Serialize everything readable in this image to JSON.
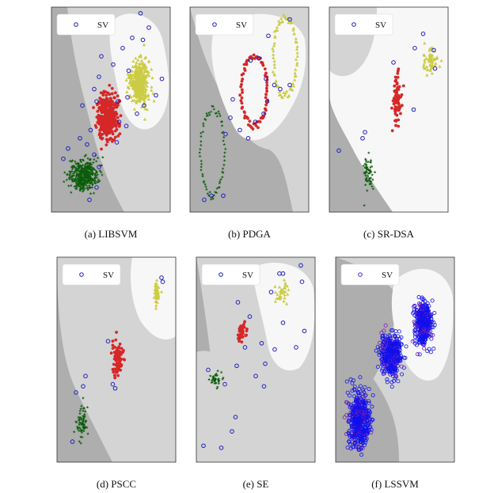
{
  "chart_data": [
    {
      "type": "scatter",
      "caption": "(a) LIBSVM",
      "legend": {
        "label": "SV",
        "placement": "top-left"
      },
      "grid": false,
      "colors": {
        "region_dark": "#aeaeae",
        "region_mid": "#d4d4d4",
        "region_light": "#f7f7f7",
        "class1": "#0b5c0b",
        "class2": "#d62728",
        "class3": "#cccc44",
        "sv": "#1f1fbf"
      },
      "series": [
        {
          "name": "",
          "marker": "star",
          "color": "#0b5c0b",
          "cluster": {
            "center": [
              0.27,
              0.18
            ],
            "spread": [
              0.1,
              0.06
            ],
            "count": 420
          }
        },
        {
          "name": "",
          "marker": "circle",
          "color": "#d62728",
          "cluster": {
            "center": [
              0.47,
              0.47
            ],
            "spread": [
              0.07,
              0.09
            ],
            "count": 380
          }
        },
        {
          "name": "",
          "marker": "triangle",
          "color": "#cccc44",
          "cluster": {
            "center": [
              0.74,
              0.63
            ],
            "spread": [
              0.07,
              0.09
            ],
            "count": 360
          }
        }
      ],
      "support_vectors": [
        [
          0.1,
          0.26
        ],
        [
          0.14,
          0.31
        ],
        [
          0.32,
          0.06
        ],
        [
          0.38,
          0.12
        ],
        [
          0.4,
          0.22
        ],
        [
          0.24,
          0.36
        ],
        [
          0.3,
          0.33
        ],
        [
          0.36,
          0.28
        ],
        [
          0.33,
          0.4
        ],
        [
          0.26,
          0.52
        ],
        [
          0.38,
          0.54
        ],
        [
          0.36,
          0.6
        ],
        [
          0.4,
          0.66
        ],
        [
          0.42,
          0.76
        ],
        [
          0.52,
          0.72
        ],
        [
          0.6,
          0.8
        ],
        [
          0.56,
          0.54
        ],
        [
          0.55,
          0.34
        ],
        [
          0.57,
          0.44
        ],
        [
          0.63,
          0.42
        ],
        [
          0.64,
          0.56
        ],
        [
          0.72,
          0.48
        ],
        [
          0.78,
          0.52
        ],
        [
          0.88,
          0.57
        ],
        [
          0.93,
          0.65
        ],
        [
          0.68,
          0.85
        ],
        [
          0.77,
          0.84
        ],
        [
          0.82,
          0.9
        ],
        [
          0.75,
          0.97
        ],
        [
          0.65,
          0.69
        ]
      ]
    },
    {
      "type": "scatter",
      "caption": "(b) PDGA",
      "legend": {
        "label": "SV",
        "placement": "top-left"
      },
      "grid": false,
      "series": [
        {
          "name": "",
          "marker": "star",
          "color": "#0b5c0b",
          "ring": {
            "center": [
              0.19,
              0.29
            ],
            "radii": [
              0.1,
              0.21
            ],
            "count": 70
          }
        },
        {
          "name": "",
          "marker": "circle",
          "color": "#d62728",
          "ring": {
            "center": [
              0.54,
              0.59
            ],
            "radii": [
              0.11,
              0.17
            ],
            "count": 75
          }
        },
        {
          "name": "",
          "marker": "triangle",
          "color": "#cccc44",
          "ring": {
            "center": [
              0.8,
              0.76
            ],
            "radii": [
              0.1,
              0.19
            ],
            "count": 75
          }
        }
      ],
      "support_vectors": [
        [
          0.12,
          0.06
        ],
        [
          0.18,
          0.08
        ],
        [
          0.28,
          0.08
        ],
        [
          0.3,
          0.38
        ],
        [
          0.34,
          0.46
        ],
        [
          0.36,
          0.55
        ],
        [
          0.42,
          0.4
        ],
        [
          0.49,
          0.36
        ],
        [
          0.55,
          0.44
        ],
        [
          0.62,
          0.48
        ],
        [
          0.64,
          0.65
        ],
        [
          0.65,
          0.54
        ],
        [
          0.71,
          0.62
        ],
        [
          0.76,
          0.6
        ],
        [
          0.84,
          0.62
        ],
        [
          0.58,
          0.75
        ],
        [
          0.51,
          0.74
        ],
        [
          0.66,
          0.86
        ],
        [
          0.84,
          0.94
        ]
      ]
    },
    {
      "type": "scatter",
      "caption": "(c) SR-DSA",
      "legend": {
        "label": "SV",
        "placement": "top-left"
      },
      "grid": false,
      "series": [
        {
          "name": "",
          "marker": "star",
          "color": "#0b5c0b",
          "cluster": {
            "center": [
              0.33,
              0.2
            ],
            "spread": [
              0.04,
              0.08
            ],
            "count": 60
          }
        },
        {
          "name": "",
          "marker": "circle",
          "color": "#d62728",
          "cluster": {
            "center": [
              0.57,
              0.55
            ],
            "spread": [
              0.03,
              0.1
            ],
            "count": 70
          }
        },
        {
          "name": "",
          "marker": "triangle",
          "color": "#cccc44",
          "cluster": {
            "center": [
              0.85,
              0.74
            ],
            "spread": [
              0.05,
              0.05
            ],
            "count": 55
          }
        }
      ],
      "support_vectors": [
        [
          0.28,
          0.36
        ],
        [
          0.3,
          0.39
        ],
        [
          0.08,
          0.3
        ],
        [
          0.54,
          0.73
        ],
        [
          0.72,
          0.8
        ],
        [
          0.79,
          0.87
        ],
        [
          0.89,
          0.7
        ],
        [
          0.88,
          0.79
        ],
        [
          0.71,
          0.5
        ]
      ]
    },
    {
      "type": "scatter",
      "caption": "(d) PSCC",
      "legend": {
        "label": "SV",
        "placement": "top-left"
      },
      "grid": false,
      "series": [
        {
          "name": "",
          "marker": "star",
          "color": "#0b5c0b",
          "cluster": {
            "center": [
              0.21,
              0.19
            ],
            "spread": [
              0.04,
              0.07
            ],
            "count": 70
          }
        },
        {
          "name": "",
          "marker": "circle",
          "color": "#d62728",
          "cluster": {
            "center": [
              0.51,
              0.51
            ],
            "spread": [
              0.04,
              0.07
            ],
            "count": 90
          }
        },
        {
          "name": "",
          "marker": "triangle",
          "color": "#cccc44",
          "cluster": {
            "center": [
              0.84,
              0.82
            ],
            "spread": [
              0.02,
              0.05
            ],
            "count": 50
          }
        }
      ],
      "support_vectors": [
        [
          0.13,
          0.1
        ],
        [
          0.16,
          0.34
        ],
        [
          0.22,
          0.37
        ],
        [
          0.24,
          0.42
        ],
        [
          0.47,
          0.38
        ],
        [
          0.49,
          0.36
        ],
        [
          0.43,
          0.59
        ],
        [
          0.88,
          0.9
        ],
        [
          0.89,
          0.88
        ]
      ]
    },
    {
      "type": "scatter",
      "caption": "(e) SE",
      "legend": {
        "label": "SV",
        "placement": "top-left"
      },
      "grid": false,
      "series": [
        {
          "name": "",
          "marker": "star",
          "color": "#0b5c0b",
          "cluster": {
            "center": [
              0.16,
              0.4
            ],
            "spread": [
              0.04,
              0.03
            ],
            "count": 40
          }
        },
        {
          "name": "",
          "marker": "circle",
          "color": "#d62728",
          "cluster": {
            "center": [
              0.38,
              0.64
            ],
            "spread": [
              0.04,
              0.04
            ],
            "count": 40
          }
        },
        {
          "name": "",
          "marker": "triangle",
          "color": "#cccc44",
          "cluster": {
            "center": [
              0.72,
              0.82
            ],
            "spread": [
              0.04,
              0.05
            ],
            "count": 35
          }
        }
      ],
      "support_vectors": [
        [
          0.06,
          0.08
        ],
        [
          0.21,
          0.07
        ],
        [
          0.3,
          0.15
        ],
        [
          0.33,
          0.22
        ],
        [
          0.24,
          0.38
        ],
        [
          0.1,
          0.45
        ],
        [
          0.34,
          0.47
        ],
        [
          0.5,
          0.42
        ],
        [
          0.57,
          0.37
        ],
        [
          0.58,
          0.48
        ],
        [
          0.55,
          0.58
        ],
        [
          0.41,
          0.56
        ],
        [
          0.35,
          0.78
        ],
        [
          0.45,
          0.71
        ],
        [
          0.66,
          0.55
        ],
        [
          0.84,
          0.56
        ],
        [
          0.91,
          0.64
        ],
        [
          0.73,
          0.68
        ],
        [
          0.63,
          0.83
        ],
        [
          0.73,
          0.92
        ],
        [
          0.89,
          0.88
        ],
        [
          0.88,
          0.96
        ],
        [
          0.7,
          0.92
        ]
      ]
    },
    {
      "type": "scatter",
      "caption": "(f) LSSVM",
      "legend": {
        "label": "SV",
        "placement": "top-left"
      },
      "grid": false,
      "series": [
        {
          "name": "",
          "marker": "circle",
          "color": "#1010ee",
          "cluster": {
            "center": [
              0.2,
              0.21
            ],
            "spread": [
              0.07,
              0.11
            ],
            "count": 500
          }
        },
        {
          "name": "",
          "marker": "circle",
          "color": "#1010ee",
          "cluster": {
            "center": [
              0.47,
              0.52
            ],
            "spread": [
              0.07,
              0.08
            ],
            "count": 420
          }
        },
        {
          "name": "",
          "marker": "circle",
          "color": "#1010ee",
          "cluster": {
            "center": [
              0.74,
              0.68
            ],
            "spread": [
              0.06,
              0.09
            ],
            "count": 420
          }
        }
      ],
      "sv_colors": {
        "outline": "#3a2fd8",
        "purple": "#7a1fb0"
      }
    }
  ]
}
